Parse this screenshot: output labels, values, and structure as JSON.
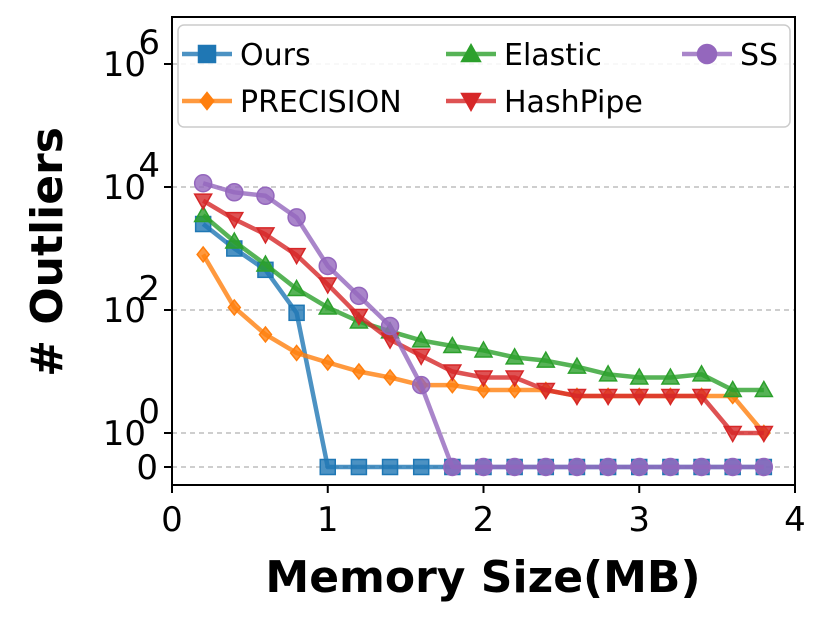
{
  "chart_data": {
    "type": "line",
    "xlabel": "Memory Size(MB)",
    "ylabel": "# Outliers",
    "xlim": [
      0,
      4
    ],
    "xticks": [
      0,
      1,
      2,
      3,
      4
    ],
    "y_scale": "symlog",
    "yticks": [
      {
        "value": 0,
        "base": "0",
        "exp": ""
      },
      {
        "value": 1,
        "base": "10",
        "exp": "0"
      },
      {
        "value": 100,
        "base": "10",
        "exp": "2"
      },
      {
        "value": 10000,
        "base": "10",
        "exp": "4"
      },
      {
        "value": 1000000,
        "base": "10",
        "exp": "6"
      }
    ],
    "grid": "horizontal dashed",
    "legend_position": "top",
    "x": [
      0.2,
      0.4,
      0.6,
      0.8,
      1.0,
      1.2,
      1.4,
      1.6,
      1.8,
      2.0,
      2.2,
      2.4,
      2.6,
      2.8,
      3.0,
      3.2,
      3.4,
      3.6,
      3.8
    ],
    "series": [
      {
        "name": "Ours",
        "color": "#1f77b4",
        "marker": "square",
        "values": [
          2500,
          1000,
          450,
          90,
          0,
          0,
          0,
          0,
          0,
          0,
          0,
          0,
          0,
          0,
          0,
          0,
          0,
          0,
          0
        ]
      },
      {
        "name": "PRECISION",
        "color": "#ff7f0e",
        "marker": "diamond",
        "values": [
          800,
          110,
          40,
          20,
          14,
          10,
          8,
          6,
          6,
          5,
          5,
          5,
          4,
          4,
          4,
          4,
          4,
          4,
          1
        ]
      },
      {
        "name": "Elastic",
        "color": "#2ca02c",
        "marker": "triangle-up",
        "values": [
          3500,
          1300,
          550,
          220,
          110,
          65,
          45,
          32,
          26,
          22,
          17,
          15,
          12,
          9,
          8,
          8,
          9,
          5,
          5
        ]
      },
      {
        "name": "HashPipe",
        "color": "#d62728",
        "marker": "triangle-down",
        "values": [
          6000,
          3000,
          1700,
          780,
          260,
          80,
          33,
          18,
          10,
          8,
          8,
          5,
          4,
          4,
          4,
          4,
          4,
          1,
          1
        ]
      },
      {
        "name": "SS",
        "color": "#9467bd",
        "marker": "circle",
        "values": [
          11500,
          8200,
          7200,
          3200,
          520,
          170,
          55,
          6,
          0,
          0,
          0,
          0,
          0,
          0,
          0,
          0,
          0,
          0,
          0
        ]
      }
    ]
  }
}
